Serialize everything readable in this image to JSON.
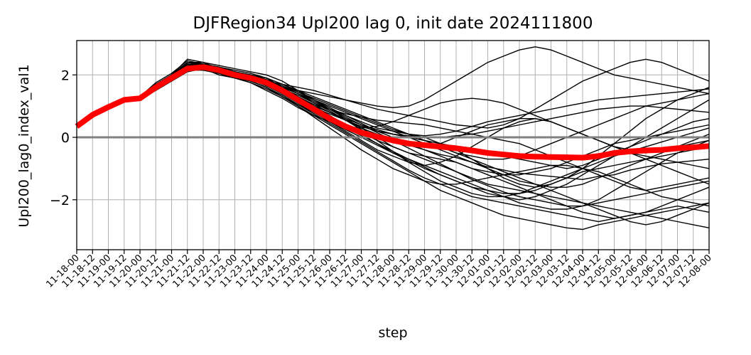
{
  "chart_data": {
    "type": "line",
    "title": "DJFRegion34 Upl200 lag 0, init date 2024111800",
    "xlabel": "step",
    "ylabel": "Upl200_lag0_index_val1",
    "x": [
      "11-18-00",
      "11-18-12",
      "11-19-00",
      "11-19-12",
      "11-20-00",
      "11-20-12",
      "11-21-00",
      "11-21-12",
      "11-22-00",
      "11-22-12",
      "11-23-00",
      "11-23-12",
      "11-24-00",
      "11-24-12",
      "11-25-00",
      "11-25-12",
      "11-26-00",
      "11-26-12",
      "11-27-00",
      "11-27-12",
      "11-28-00",
      "11-28-12",
      "11-29-00",
      "11-29-12",
      "11-30-00",
      "11-30-12",
      "12-01-00",
      "12-01-12",
      "12-02-00",
      "12-02-12",
      "12-03-00",
      "12-03-12",
      "12-04-00",
      "12-04-12",
      "12-05-00",
      "12-05-12",
      "12-06-00",
      "12-06-12",
      "12-07-00",
      "12-07-12",
      "12-08-00"
    ],
    "ylim": [
      -3.6,
      3.1
    ],
    "yticks": [
      -2,
      0,
      2
    ],
    "ytick_labels": [
      "−2",
      "0",
      "2"
    ],
    "grid": true,
    "reference_line": {
      "y": 0,
      "color": "#808080"
    },
    "ensemble_color": "#000000",
    "ensemble_members": [
      [
        0.35,
        0.7,
        0.95,
        1.2,
        1.25,
        1.6,
        1.9,
        2.3,
        2.25,
        2.15,
        2.05,
        1.95,
        1.7,
        1.5,
        1.2,
        0.9,
        0.6,
        0.35,
        0.2,
        0.0,
        -0.1,
        -0.25,
        -0.4,
        -0.55,
        -0.65,
        -0.8,
        -0.95,
        -1.05,
        -1.15,
        -1.2,
        -1.25,
        -1.3,
        -1.35,
        -1.25,
        -1.2,
        -1.05,
        -0.95,
        -0.85,
        -0.8,
        -0.75,
        -0.7
      ],
      [
        0.35,
        0.7,
        0.95,
        1.2,
        1.3,
        1.7,
        2.0,
        2.5,
        2.4,
        2.2,
        2.1,
        2.0,
        1.9,
        1.6,
        1.4,
        1.1,
        0.9,
        0.7,
        0.5,
        0.3,
        0.2,
        0.1,
        0.05,
        0.1,
        0.2,
        0.35,
        0.5,
        0.6,
        0.7,
        0.8,
        0.9,
        1.0,
        1.1,
        1.2,
        1.25,
        1.3,
        1.35,
        1.4,
        1.45,
        1.5,
        1.55
      ],
      [
        0.35,
        0.7,
        0.95,
        1.2,
        1.2,
        1.5,
        1.8,
        2.1,
        2.2,
        2.0,
        1.9,
        1.8,
        1.6,
        1.3,
        1.0,
        0.7,
        0.4,
        0.1,
        -0.2,
        -0.5,
        -0.8,
        -1.1,
        -1.4,
        -1.7,
        -1.9,
        -2.1,
        -2.3,
        -2.5,
        -2.6,
        -2.7,
        -2.8,
        -2.9,
        -2.95,
        -2.8,
        -2.7,
        -2.6,
        -2.5,
        -2.4,
        -2.3,
        -2.2,
        -2.1
      ],
      [
        0.35,
        0.7,
        0.95,
        1.2,
        1.25,
        1.65,
        1.95,
        2.35,
        2.3,
        2.25,
        2.1,
        1.9,
        1.8,
        1.6,
        1.5,
        1.4,
        1.3,
        1.2,
        1.1,
        1.0,
        0.95,
        1.0,
        1.2,
        1.5,
        1.8,
        2.1,
        2.4,
        2.6,
        2.8,
        2.9,
        2.8,
        2.6,
        2.4,
        2.2,
        2.0,
        1.9,
        1.8,
        1.7,
        1.6,
        1.5,
        1.4
      ],
      [
        0.35,
        0.7,
        0.95,
        1.2,
        1.25,
        1.6,
        1.9,
        2.2,
        2.3,
        2.2,
        2.0,
        1.9,
        1.7,
        1.4,
        1.1,
        0.8,
        0.5,
        0.2,
        -0.1,
        -0.4,
        -0.6,
        -0.8,
        -0.9,
        -0.8,
        -0.6,
        -0.3,
        0.0,
        0.3,
        0.5,
        0.6,
        0.5,
        0.3,
        0.1,
        -0.1,
        -0.3,
        -0.4,
        -0.5,
        -0.4,
        -0.3,
        -0.2,
        -0.1
      ],
      [
        0.35,
        0.7,
        0.95,
        1.2,
        1.3,
        1.7,
        2.0,
        2.4,
        2.3,
        2.1,
        1.95,
        1.85,
        1.7,
        1.55,
        1.35,
        1.1,
        0.85,
        0.55,
        0.25,
        -0.1,
        -0.45,
        -0.8,
        -1.1,
        -1.4,
        -1.6,
        -1.8,
        -1.9,
        -1.9,
        -1.8,
        -1.6,
        -1.4,
        -1.2,
        -1.0,
        -0.8,
        -0.6,
        -0.45,
        -0.3,
        -0.15,
        0.0,
        0.15,
        0.3
      ],
      [
        0.35,
        0.7,
        0.95,
        1.2,
        1.2,
        1.55,
        1.85,
        2.2,
        2.15,
        2.05,
        1.9,
        1.75,
        1.5,
        1.25,
        0.95,
        0.7,
        0.5,
        0.35,
        0.3,
        0.35,
        0.5,
        0.7,
        0.9,
        1.1,
        1.2,
        1.25,
        1.2,
        1.1,
        0.9,
        0.7,
        0.5,
        0.3,
        0.1,
        -0.1,
        -0.3,
        -0.5,
        -0.7,
        -0.9,
        -1.1,
        -1.3,
        -1.5
      ],
      [
        0.35,
        0.7,
        0.95,
        1.2,
        1.25,
        1.6,
        1.95,
        2.3,
        2.35,
        2.25,
        2.1,
        2.0,
        1.85,
        1.6,
        1.3,
        1.0,
        0.7,
        0.4,
        0.1,
        -0.2,
        -0.5,
        -0.7,
        -0.9,
        -1.1,
        -1.3,
        -1.5,
        -1.7,
        -1.9,
        -2.1,
        -2.2,
        -2.3,
        -2.3,
        -2.2,
        -2.0,
        -1.7,
        -1.4,
        -1.1,
        -0.8,
        -0.5,
        -0.3,
        -0.1
      ],
      [
        0.35,
        0.7,
        0.95,
        1.2,
        1.3,
        1.75,
        2.05,
        2.45,
        2.35,
        2.2,
        2.05,
        1.95,
        1.8,
        1.65,
        1.45,
        1.25,
        1.05,
        0.85,
        0.65,
        0.45,
        0.25,
        0.1,
        0.0,
        -0.2,
        -0.4,
        -0.7,
        -1.0,
        -1.3,
        -1.5,
        -1.6,
        -1.5,
        -1.3,
        -1.0,
        -0.6,
        -0.2,
        0.2,
        0.6,
        0.9,
        1.2,
        1.4,
        1.6
      ],
      [
        0.35,
        0.7,
        0.95,
        1.2,
        1.2,
        1.55,
        1.8,
        2.15,
        2.2,
        2.1,
        1.95,
        1.8,
        1.6,
        1.3,
        1.0,
        0.65,
        0.3,
        -0.05,
        -0.4,
        -0.7,
        -1.0,
        -1.2,
        -1.4,
        -1.5,
        -1.5,
        -1.4,
        -1.3,
        -1.2,
        -1.1,
        -1.0,
        -0.9,
        -0.9,
        -1.0,
        -1.1,
        -1.3,
        -1.5,
        -1.7,
        -1.9,
        -2.0,
        -2.1,
        -2.2
      ],
      [
        0.35,
        0.7,
        0.95,
        1.2,
        1.25,
        1.65,
        1.9,
        2.3,
        2.25,
        2.15,
        2.0,
        1.9,
        1.75,
        1.5,
        1.25,
        1.0,
        0.8,
        0.6,
        0.4,
        0.25,
        0.1,
        0.0,
        -0.1,
        -0.3,
        -0.5,
        -0.6,
        -0.7,
        -0.7,
        -0.6,
        -0.4,
        -0.2,
        0.0,
        0.2,
        0.4,
        0.6,
        0.8,
        1.0,
        1.1,
        1.2,
        1.3,
        1.4
      ],
      [
        0.35,
        0.7,
        0.95,
        1.2,
        1.3,
        1.7,
        1.95,
        2.4,
        2.4,
        2.3,
        2.2,
        2.1,
        2.0,
        1.8,
        1.5,
        1.2,
        0.9,
        0.6,
        0.3,
        0.0,
        -0.3,
        -0.5,
        -0.6,
        -0.7,
        -0.8,
        -1.0,
        -1.2,
        -1.4,
        -1.6,
        -1.8,
        -2.0,
        -2.2,
        -2.4,
        -2.5,
        -2.6,
        -2.5,
        -2.4,
        -2.2,
        -2.0,
        -1.8,
        -1.6
      ],
      [
        0.35,
        0.7,
        0.95,
        1.2,
        1.2,
        1.6,
        1.85,
        2.2,
        2.2,
        2.15,
        2.05,
        1.9,
        1.7,
        1.45,
        1.2,
        0.95,
        0.75,
        0.55,
        0.35,
        0.2,
        0.1,
        0.0,
        -0.1,
        -0.2,
        -0.3,
        -0.4,
        -0.5,
        -0.6,
        -0.7,
        -0.8,
        -0.9,
        -1.0,
        -0.9,
        -0.7,
        -0.5,
        -0.3,
        -0.1,
        0.1,
        0.3,
        0.5,
        0.6
      ],
      [
        0.35,
        0.7,
        0.95,
        1.2,
        1.25,
        1.6,
        1.9,
        2.3,
        2.3,
        2.2,
        2.05,
        1.9,
        1.8,
        1.7,
        1.6,
        1.5,
        1.35,
        1.2,
        1.05,
        0.9,
        0.8,
        0.7,
        0.6,
        0.5,
        0.4,
        0.35,
        0.3,
        0.4,
        0.6,
        0.9,
        1.2,
        1.5,
        1.8,
        2.0,
        2.2,
        2.4,
        2.5,
        2.4,
        2.2,
        2.0,
        1.8
      ],
      [
        0.35,
        0.7,
        0.95,
        1.2,
        1.25,
        1.6,
        1.9,
        2.25,
        2.2,
        2.1,
        1.95,
        1.8,
        1.6,
        1.35,
        1.05,
        0.75,
        0.45,
        0.15,
        -0.15,
        -0.45,
        -0.75,
        -1.05,
        -1.3,
        -1.5,
        -1.7,
        -1.9,
        -2.0,
        -2.1,
        -2.2,
        -2.3,
        -2.4,
        -2.5,
        -2.6,
        -2.7,
        -2.6,
        -2.5,
        -2.4,
        -2.3,
        -2.2,
        -2.3,
        -2.4
      ],
      [
        0.35,
        0.7,
        0.95,
        1.2,
        1.3,
        1.65,
        2.0,
        2.35,
        2.3,
        2.2,
        2.1,
        2.0,
        1.9,
        1.7,
        1.45,
        1.2,
        0.95,
        0.7,
        0.45,
        0.2,
        0.0,
        -0.2,
        -0.4,
        -0.6,
        -0.8,
        -1.0,
        -1.1,
        -1.2,
        -1.2,
        -1.1,
        -1.0,
        -0.8,
        -0.6,
        -0.4,
        -0.2,
        -0.1,
        0.0,
        0.1,
        0.2,
        0.3,
        0.4
      ],
      [
        0.35,
        0.7,
        0.95,
        1.2,
        1.2,
        1.55,
        1.85,
        2.2,
        2.25,
        2.15,
        2.0,
        1.85,
        1.65,
        1.4,
        1.15,
        0.9,
        0.65,
        0.4,
        0.15,
        -0.1,
        -0.3,
        -0.5,
        -0.7,
        -0.9,
        -1.1,
        -1.3,
        -1.5,
        -1.6,
        -1.7,
        -1.8,
        -1.9,
        -2.0,
        -2.1,
        -2.2,
        -2.3,
        -2.4,
        -2.5,
        -2.6,
        -2.7,
        -2.8,
        -2.9
      ],
      [
        0.35,
        0.7,
        0.95,
        1.2,
        1.25,
        1.65,
        1.95,
        2.3,
        2.3,
        2.2,
        2.05,
        1.9,
        1.75,
        1.55,
        1.3,
        1.05,
        0.8,
        0.55,
        0.3,
        0.1,
        -0.1,
        -0.2,
        -0.3,
        -0.2,
        0.0,
        0.2,
        0.4,
        0.5,
        0.6,
        0.6,
        0.5,
        0.3,
        0.1,
        -0.1,
        -0.3,
        -0.5,
        -0.6,
        -0.7,
        -0.8,
        -0.9,
        -1.0
      ],
      [
        0.35,
        0.7,
        0.95,
        1.2,
        1.3,
        1.7,
        2.0,
        2.4,
        2.35,
        2.25,
        2.15,
        2.05,
        1.9,
        1.7,
        1.5,
        1.3,
        1.1,
        0.9,
        0.7,
        0.5,
        0.3,
        0.1,
        -0.1,
        -0.3,
        -0.5,
        -0.7,
        -0.9,
        -1.1,
        -1.3,
        -1.5,
        -1.7,
        -1.9,
        -2.1,
        -2.3,
        -2.5,
        -2.7,
        -2.8,
        -2.7,
        -2.5,
        -2.3,
        -2.1
      ],
      [
        0.35,
        0.7,
        0.95,
        1.2,
        1.2,
        1.55,
        1.8,
        2.15,
        2.15,
        2.05,
        1.9,
        1.75,
        1.55,
        1.3,
        1.05,
        0.8,
        0.55,
        0.3,
        0.05,
        -0.2,
        -0.45,
        -0.7,
        -0.95,
        -1.2,
        -1.4,
        -1.6,
        -1.8,
        -1.9,
        -2.0,
        -1.9,
        -1.7,
        -1.5,
        -1.2,
        -0.9,
        -0.6,
        -0.3,
        0.0,
        0.3,
        0.6,
        0.9,
        1.2
      ],
      [
        0.35,
        0.7,
        0.95,
        1.2,
        1.25,
        1.6,
        1.9,
        2.3,
        2.3,
        2.2,
        2.05,
        1.95,
        1.8,
        1.6,
        1.4,
        1.2,
        1.0,
        0.8,
        0.6,
        0.4,
        0.2,
        0.0,
        -0.2,
        -0.4,
        -0.6,
        -0.8,
        -1.0,
        -1.2,
        -1.4,
        -1.5,
        -1.6,
        -1.6,
        -1.5,
        -1.3,
        -1.1,
        -0.9,
        -0.7,
        -0.5,
        -0.3,
        -0.1,
        0.1
      ],
      [
        0.35,
        0.7,
        0.95,
        1.2,
        1.25,
        1.65,
        1.95,
        2.35,
        2.3,
        2.2,
        2.1,
        1.95,
        1.8,
        1.55,
        1.3,
        1.05,
        0.8,
        0.55,
        0.35,
        0.2,
        0.1,
        0.05,
        0.0,
        0.0,
        0.05,
        0.1,
        0.2,
        0.3,
        0.4,
        0.5,
        0.6,
        0.7,
        0.8,
        0.9,
        0.95,
        1.0,
        1.0,
        0.95,
        0.9,
        0.85,
        0.8
      ],
      [
        0.35,
        0.7,
        0.95,
        1.2,
        1.3,
        1.7,
        2.0,
        2.4,
        2.35,
        2.25,
        2.1,
        2.0,
        1.85,
        1.65,
        1.4,
        1.15,
        0.9,
        0.65,
        0.4,
        0.15,
        -0.1,
        -0.35,
        -0.6,
        -0.85,
        -1.1,
        -1.35,
        -1.55,
        -1.75,
        -1.9,
        -2.0,
        -2.1,
        -2.2,
        -2.2,
        -2.1,
        -2.0,
        -1.9,
        -1.8,
        -1.7,
        -1.6,
        -1.5,
        -1.4
      ],
      [
        0.35,
        0.7,
        0.95,
        1.2,
        1.2,
        1.6,
        1.85,
        2.2,
        2.2,
        2.1,
        1.95,
        1.85,
        1.65,
        1.45,
        1.25,
        1.05,
        0.9,
        0.75,
        0.65,
        0.55,
        0.5,
        0.45,
        0.4,
        0.3,
        0.2,
        0.1,
        0.0,
        -0.1,
        -0.2,
        -0.4,
        -0.6,
        -0.8,
        -1.0,
        -1.2,
        -1.4,
        -1.6,
        -1.7,
        -1.6,
        -1.5,
        -1.4,
        -1.3
      ],
      [
        0.35,
        0.7,
        0.95,
        1.2,
        1.25,
        1.6,
        1.9,
        2.25,
        2.25,
        2.15,
        2.0,
        1.85,
        1.65,
        1.4,
        1.1,
        0.8,
        0.5,
        0.25,
        0.0,
        -0.25,
        -0.5,
        -0.75,
        -1.0,
        -1.2,
        -1.4,
        -1.6,
        -1.7,
        -1.8,
        -1.8,
        -1.7,
        -1.5,
        -1.3,
        -1.1,
        -1.0,
        -0.9,
        -0.8,
        -0.7,
        -0.6,
        -0.5,
        -0.4,
        -0.3
      ]
    ],
    "ensemble_mean": {
      "color": "#ff0000",
      "values": [
        0.35,
        0.72,
        0.97,
        1.2,
        1.25,
        1.6,
        1.9,
        2.2,
        2.25,
        2.15,
        2.0,
        1.9,
        1.75,
        1.5,
        1.2,
        0.9,
        0.6,
        0.35,
        0.15,
        0.02,
        -0.1,
        -0.2,
        -0.25,
        -0.3,
        -0.35,
        -0.42,
        -0.5,
        -0.55,
        -0.6,
        -0.62,
        -0.63,
        -0.64,
        -0.65,
        -0.6,
        -0.5,
        -0.45,
        -0.42,
        -0.4,
        -0.35,
        -0.32,
        -0.28
      ]
    }
  }
}
